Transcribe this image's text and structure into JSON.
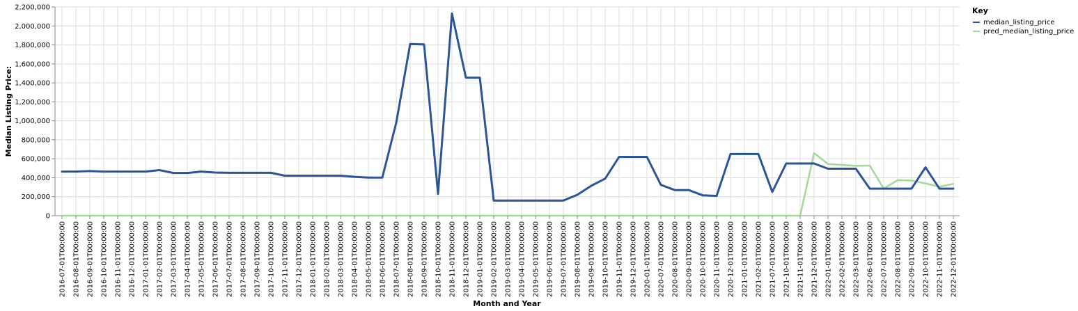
{
  "chart_data": {
    "type": "line",
    "xlabel": "Month and Year",
    "ylabel": "Median Listing Price:",
    "ylim": [
      0,
      2200000
    ],
    "yticks": [
      0,
      200000,
      400000,
      600000,
      800000,
      1000000,
      1200000,
      1400000,
      1600000,
      1800000,
      2000000,
      2200000
    ],
    "ytick_labels": [
      "0",
      "200,000",
      "400,000",
      "600,000",
      "800,000",
      "1,000,000",
      "1,200,000",
      "1,400,000",
      "1,600,000",
      "1,800,000",
      "2,000,000",
      "2,200,000"
    ],
    "grid": true,
    "legend": {
      "title": "Key",
      "position": "top-right"
    },
    "categories": [
      "2016-07-01T00:00:00",
      "2016-08-01T00:00:00",
      "2016-09-01T00:00:00",
      "2016-10-01T00:00:00",
      "2016-11-01T00:00:00",
      "2016-12-01T00:00:00",
      "2017-01-01T00:00:00",
      "2017-02-01T00:00:00",
      "2017-03-01T00:00:00",
      "2017-04-01T00:00:00",
      "2017-05-01T00:00:00",
      "2017-06-01T00:00:00",
      "2017-07-01T00:00:00",
      "2017-08-01T00:00:00",
      "2017-09-01T00:00:00",
      "2017-10-01T00:00:00",
      "2017-11-01T00:00:00",
      "2017-12-01T00:00:00",
      "2018-01-01T00:00:00",
      "2018-02-01T00:00:00",
      "2018-03-01T00:00:00",
      "2018-04-01T00:00:00",
      "2018-05-01T00:00:00",
      "2018-06-01T00:00:00",
      "2018-07-01T00:00:00",
      "2018-08-01T00:00:00",
      "2018-09-01T00:00:00",
      "2018-10-01T00:00:00",
      "2018-11-01T00:00:00",
      "2018-12-01T00:00:00",
      "2019-01-01T00:00:00",
      "2019-02-01T00:00:00",
      "2019-03-01T00:00:00",
      "2019-04-01T00:00:00",
      "2019-05-01T00:00:00",
      "2019-06-01T00:00:00",
      "2019-07-01T00:00:00",
      "2019-08-01T00:00:00",
      "2019-09-01T00:00:00",
      "2019-10-01T00:00:00",
      "2019-11-01T00:00:00",
      "2019-12-01T00:00:00",
      "2020-01-01T00:00:00",
      "2020-07-01T00:00:00",
      "2020-08-01T00:00:00",
      "2020-09-01T00:00:00",
      "2020-10-01T00:00:00",
      "2020-11-01T00:00:00",
      "2020-12-01T00:00:00",
      "2021-01-01T00:00:00",
      "2021-02-01T00:00:00",
      "2021-07-01T00:00:00",
      "2021-10-01T00:00:00",
      "2021-11-01T00:00:00",
      "2021-12-01T00:00:00",
      "2022-01-01T00:00:00",
      "2022-02-01T00:00:00",
      "2022-03-01T00:00:00",
      "2022-06-01T00:00:00",
      "2022-07-01T00:00:00",
      "2022-08-01T00:00:00",
      "2022-09-01T00:00:00",
      "2022-10-01T00:00:00",
      "2022-11-01T00:00:00",
      "2022-12-01T00:00:00"
    ],
    "series": [
      {
        "name": "median_listing_price",
        "color": "#2a5596",
        "values": [
          465000,
          465000,
          470000,
          465000,
          465000,
          465000,
          465000,
          480000,
          450000,
          450000,
          465000,
          455000,
          452000,
          452000,
          452000,
          452000,
          422000,
          422000,
          422000,
          422000,
          422000,
          410000,
          402000,
          402000,
          980000,
          1810000,
          1805000,
          230000,
          2130000,
          1455000,
          1455000,
          160000,
          160000,
          160000,
          160000,
          160000,
          160000,
          220000,
          315000,
          390000,
          620000,
          620000,
          620000,
          325000,
          270000,
          270000,
          215000,
          208000,
          650000,
          650000,
          650000,
          250000,
          550000,
          550000,
          550000,
          495000,
          495000,
          495000,
          285000,
          285000,
          285000,
          285000,
          510000,
          285000,
          285000
        ]
      },
      {
        "name": "pred_median_listing_price",
        "color": "#a3d997",
        "values": [
          0,
          0,
          0,
          0,
          0,
          0,
          0,
          0,
          0,
          0,
          0,
          0,
          0,
          0,
          0,
          0,
          0,
          0,
          0,
          0,
          0,
          0,
          0,
          0,
          0,
          0,
          0,
          0,
          0,
          0,
          0,
          0,
          0,
          0,
          0,
          0,
          0,
          0,
          0,
          0,
          0,
          0,
          0,
          0,
          0,
          0,
          0,
          0,
          0,
          0,
          0,
          0,
          0,
          0,
          660000,
          545000,
          535000,
          525000,
          528000,
          285000,
          375000,
          370000,
          340000,
          305000,
          335000
        ]
      }
    ]
  }
}
